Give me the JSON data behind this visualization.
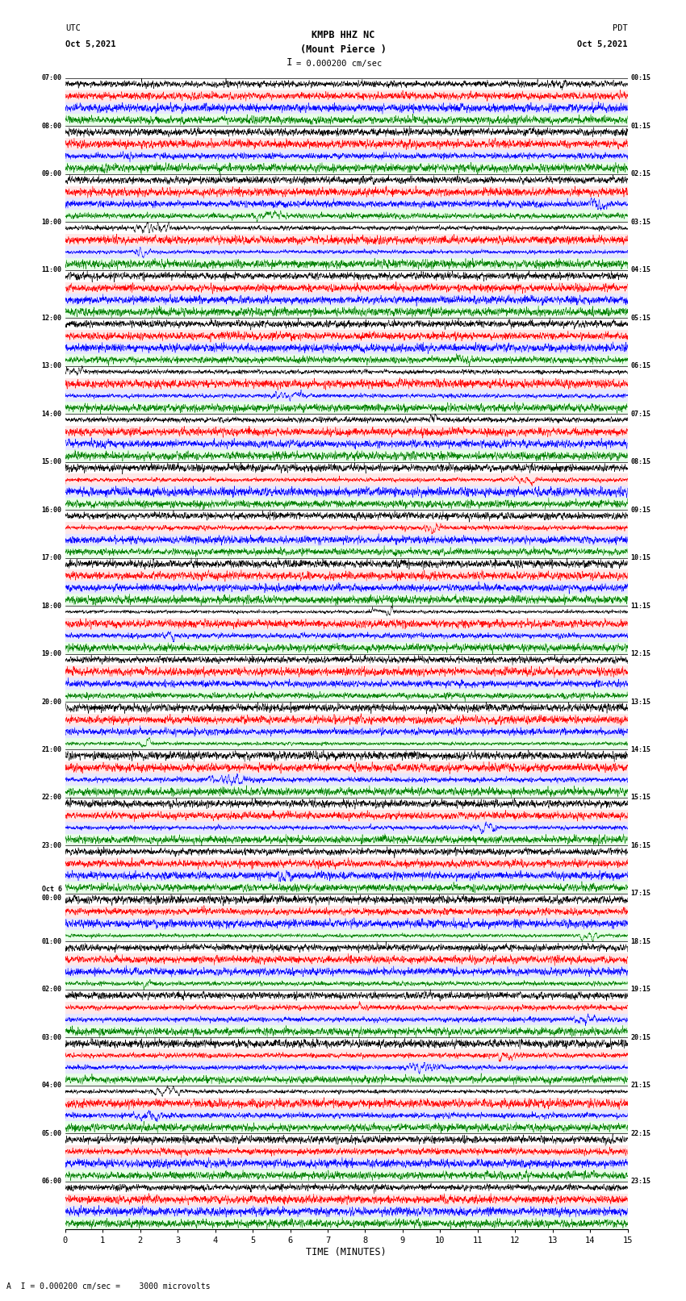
{
  "title_center": "KMPB HHZ NC\n(Mount Pierce )",
  "title_left": "UTC\nOct 5,2021",
  "title_right": "PDT\nOct 5,2021",
  "scale_label": "I = 0.000200 cm/sec",
  "bottom_label": "A  I = 0.000200 cm/sec =    3000 microvolts",
  "xlabel": "TIME (MINUTES)",
  "x_ticks": [
    0,
    1,
    2,
    3,
    4,
    5,
    6,
    7,
    8,
    9,
    10,
    11,
    12,
    13,
    14,
    15
  ],
  "left_times": [
    "07:00",
    "08:00",
    "09:00",
    "10:00",
    "11:00",
    "12:00",
    "13:00",
    "14:00",
    "15:00",
    "16:00",
    "17:00",
    "18:00",
    "19:00",
    "20:00",
    "21:00",
    "22:00",
    "23:00",
    "Oct 6\n00:00",
    "01:00",
    "02:00",
    "03:00",
    "04:00",
    "05:00",
    "06:00"
  ],
  "right_times": [
    "00:15",
    "01:15",
    "02:15",
    "03:15",
    "04:15",
    "05:15",
    "06:15",
    "07:15",
    "08:15",
    "09:15",
    "10:15",
    "11:15",
    "12:15",
    "13:15",
    "14:15",
    "15:15",
    "16:15",
    "17:15",
    "18:15",
    "19:15",
    "20:15",
    "21:15",
    "22:15",
    "23:15"
  ],
  "num_rows": 24,
  "minutes_per_row": 15,
  "colors_top_to_bottom": [
    "black",
    "red",
    "blue",
    "green"
  ],
  "bg_bands": [
    "#ffffff",
    "#ffe8e8",
    "#e8e8ff",
    "#e8ffe8"
  ],
  "bg_color": "white",
  "fig_width": 8.5,
  "fig_height": 16.13,
  "dpi": 100,
  "noise_by_row": [
    0.4,
    0.4,
    0.5,
    0.45,
    0.4,
    0.38,
    0.35,
    0.4,
    0.5,
    0.9,
    0.6,
    0.55,
    0.8,
    1.0,
    1.8,
    2.5,
    1.5,
    0.6,
    0.55,
    0.5,
    0.45,
    0.45,
    0.45,
    0.45
  ]
}
